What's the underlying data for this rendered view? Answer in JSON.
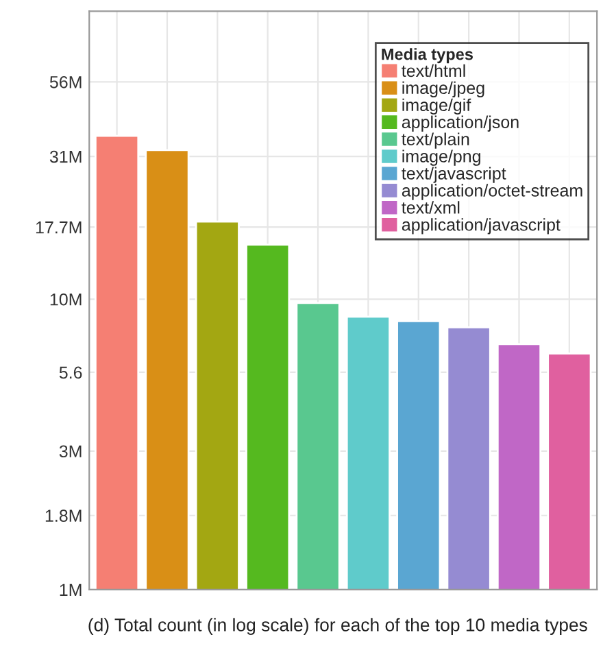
{
  "chart_data": {
    "type": "bar",
    "legend_title": "Media types",
    "categories": [
      null,
      null,
      null,
      null,
      null,
      null,
      null,
      null,
      null,
      null
    ],
    "series": [
      {
        "name": "text/html",
        "color": "#f57f73",
        "values": [
          36.5,
          null,
          null,
          null,
          null,
          null,
          null,
          null,
          null,
          null
        ]
      },
      {
        "name": "image/jpeg",
        "color": "#d98f16",
        "values": [
          null,
          32.6,
          null,
          null,
          null,
          null,
          null,
          null,
          null,
          null
        ]
      },
      {
        "name": "image/gif",
        "color": "#a3a712",
        "values": [
          null,
          null,
          18.5,
          null,
          null,
          null,
          null,
          null,
          null,
          null
        ]
      },
      {
        "name": "application/json",
        "color": "#55b91f",
        "values": [
          null,
          null,
          null,
          15.4,
          null,
          null,
          null,
          null,
          null,
          null
        ]
      },
      {
        "name": "text/plain",
        "color": "#59c88f",
        "values": [
          null,
          null,
          null,
          null,
          9.7,
          null,
          null,
          null,
          null,
          null
        ]
      },
      {
        "name": "image/png",
        "color": "#5fcbcb",
        "values": [
          null,
          null,
          null,
          null,
          null,
          8.7,
          null,
          null,
          null,
          null
        ]
      },
      {
        "name": "text/javascript",
        "color": "#5aa6d2",
        "values": [
          null,
          null,
          null,
          null,
          null,
          null,
          8.4,
          null,
          null,
          null
        ]
      },
      {
        "name": "application/octet-stream",
        "color": "#958bd2",
        "values": [
          null,
          null,
          null,
          null,
          null,
          null,
          null,
          8.0,
          null,
          null
        ]
      },
      {
        "name": "text/xml",
        "color": "#c067c6",
        "values": [
          null,
          null,
          null,
          null,
          null,
          null,
          null,
          null,
          7.0,
          null
        ]
      },
      {
        "name": "application/javascript",
        "color": "#e0609f",
        "values": [
          null,
          null,
          null,
          null,
          null,
          null,
          null,
          null,
          null,
          6.5
        ]
      }
    ],
    "log": true,
    "ylim": [
      1,
      98
    ],
    "yticks": [
      {
        "value": 1,
        "label": "1M"
      },
      {
        "value": 1.8,
        "label": "1.8M"
      },
      {
        "value": 3,
        "label": "3M"
      },
      5.6,
      {
        "value": 10,
        "label": "10M"
      },
      {
        "value": 17.7,
        "label": "17.7M"
      },
      {
        "value": 31,
        "label": "31M"
      },
      {
        "value": 56,
        "label": "56M"
      }
    ],
    "tick_labels": "y",
    "grid": true,
    "legend": "top right",
    "annotations": [
      "(d) Total count (in log scale) for each of the top 10 media types"
    ]
  }
}
